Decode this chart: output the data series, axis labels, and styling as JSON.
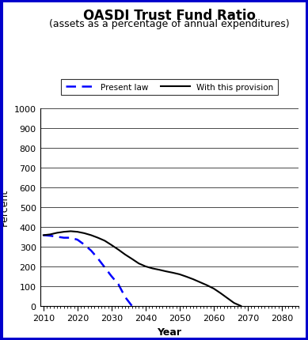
{
  "title": "OASDI Trust Fund Ratio",
  "subtitle": "(assets as a percentage of annual expenditures)",
  "xlabel": "Year",
  "ylabel": "Percent",
  "xlim": [
    2009,
    2085
  ],
  "ylim": [
    0,
    1000
  ],
  "yticks": [
    0,
    100,
    200,
    300,
    400,
    500,
    600,
    700,
    800,
    900,
    1000
  ],
  "xticks": [
    2010,
    2020,
    2030,
    2040,
    2050,
    2060,
    2070,
    2080
  ],
  "background_color": "#ffffff",
  "border_color": "#0000cc",
  "present_law": {
    "x": [
      2010,
      2012,
      2014,
      2016,
      2018,
      2020,
      2022,
      2024,
      2026,
      2028,
      2030,
      2032,
      2034,
      2036
    ],
    "y": [
      358,
      355,
      350,
      345,
      345,
      335,
      310,
      280,
      240,
      195,
      150,
      110,
      45,
      0
    ],
    "color": "#0000ff",
    "label": "Present law"
  },
  "with_provision": {
    "x": [
      2010,
      2012,
      2014,
      2016,
      2018,
      2020,
      2022,
      2024,
      2026,
      2028,
      2030,
      2032,
      2034,
      2036,
      2038,
      2040,
      2042,
      2044,
      2046,
      2048,
      2050,
      2052,
      2054,
      2056,
      2058,
      2060,
      2062,
      2064,
      2066,
      2068
    ],
    "y": [
      358,
      362,
      370,
      375,
      378,
      375,
      368,
      358,
      345,
      330,
      308,
      285,
      260,
      238,
      215,
      200,
      190,
      183,
      175,
      168,
      160,
      148,
      135,
      120,
      105,
      88,
      65,
      40,
      15,
      0
    ],
    "color": "#000000",
    "label": "With this provision"
  },
  "title_fontsize": 12,
  "subtitle_fontsize": 9,
  "axis_label_fontsize": 9,
  "tick_fontsize": 8,
  "legend_fontsize": 7.5
}
